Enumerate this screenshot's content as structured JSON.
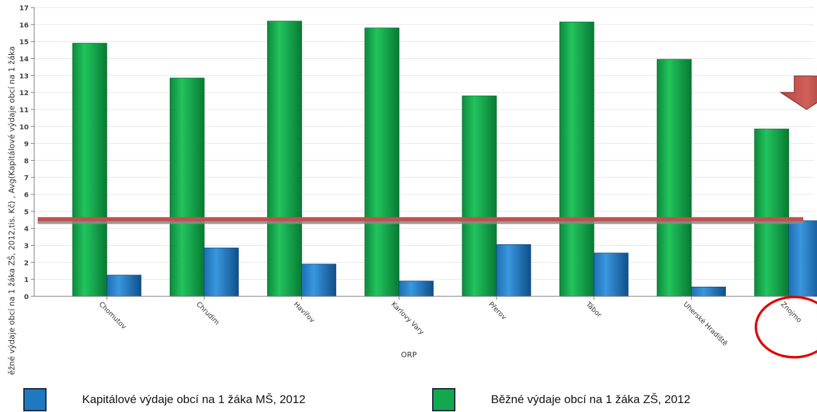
{
  "chart_data": {
    "type": "bar",
    "ylabel": "ěžné výdaje obcí na 1 žáka ZŠ, 2012,tis. Kč) , Avg(Kapitálové výdaje obcí na 1 žáka",
    "xlabel": "ORP",
    "ylim": [
      0,
      17
    ],
    "yticks": [
      0,
      1,
      2,
      3,
      4,
      5,
      6,
      7,
      8,
      9,
      10,
      11,
      12,
      13,
      14,
      15,
      16,
      17
    ],
    "categories": [
      "Chomutov",
      "Chrudim",
      "Havířov",
      "Karlovy Vary",
      "Přerov",
      "Tábor",
      "Uherské Hradiště",
      "Znojmo"
    ],
    "series": [
      {
        "name": "Běžné výdaje obcí na 1 žáka ZŠ, 2012",
        "color": "#12a84e",
        "values": [
          14.9,
          12.85,
          16.2,
          15.8,
          11.8,
          16.15,
          13.95,
          9.85
        ]
      },
      {
        "name": "Kapitálové výdaje obcí na 1 žáka MŠ, 2012",
        "color": "#1f78c1",
        "values": [
          1.25,
          2.85,
          1.9,
          0.9,
          3.05,
          2.55,
          0.55,
          4.45
        ]
      }
    ],
    "reference_line": {
      "value": 4.5,
      "color": "#c0504d"
    },
    "grid": true,
    "legend_position": "bottom"
  },
  "legend": [
    {
      "label": "Kapitálové výdaje obcí na 1 žáka MŠ, 2012",
      "color": "#1f78c1"
    },
    {
      "label": "Běžné výdaje obcí na 1 žáka ZŠ, 2012",
      "color": "#12a84e"
    }
  ],
  "annotations": {
    "highlight_category": "Znojmo",
    "circle_color": "#e00000",
    "arrow_color": "#c0504d"
  }
}
